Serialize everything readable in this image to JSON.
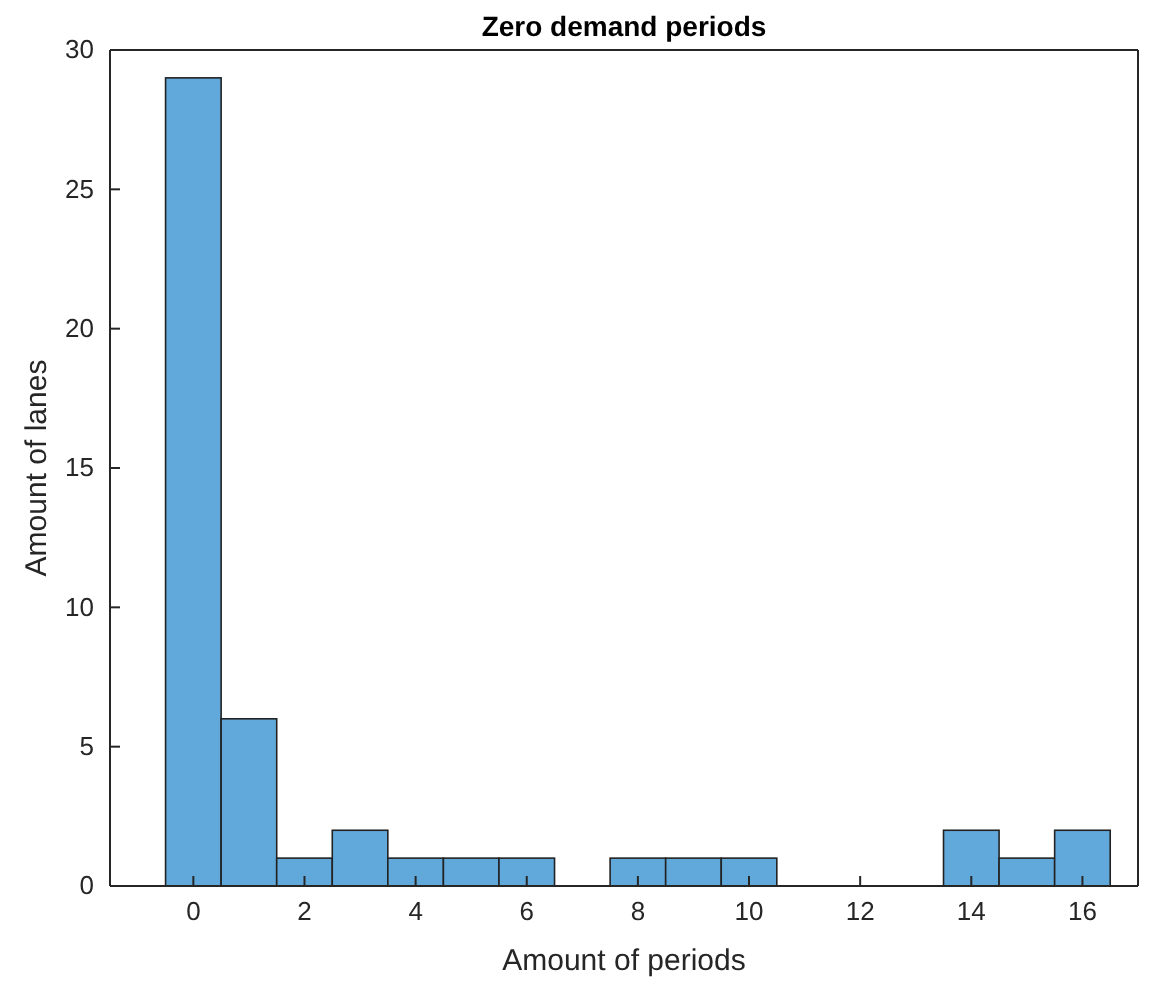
{
  "chart_data": {
    "type": "histogram",
    "title": "Zero demand periods",
    "xlabel": "Amount of periods",
    "ylabel": "Amount of lanes",
    "bins": [
      -0.5,
      0.5,
      1.5,
      2.5,
      3.5,
      4.5,
      5.5,
      6.5,
      7.5,
      8.5,
      9.5,
      10.5,
      11.5,
      12.5,
      13.5,
      14.5,
      15.5,
      16.5
    ],
    "values": [
      29,
      6,
      1,
      2,
      1,
      1,
      1,
      0,
      1,
      1,
      1,
      0,
      0,
      0,
      2,
      1,
      2
    ],
    "color": "#62a9db",
    "xlim": [
      -1.5,
      17
    ],
    "xticks": [
      0,
      2,
      4,
      6,
      8,
      10,
      12,
      14,
      16
    ],
    "ylim": [
      0,
      30
    ],
    "yticks": [
      0,
      5,
      10,
      15,
      20,
      25,
      30
    ],
    "grid": false
  }
}
